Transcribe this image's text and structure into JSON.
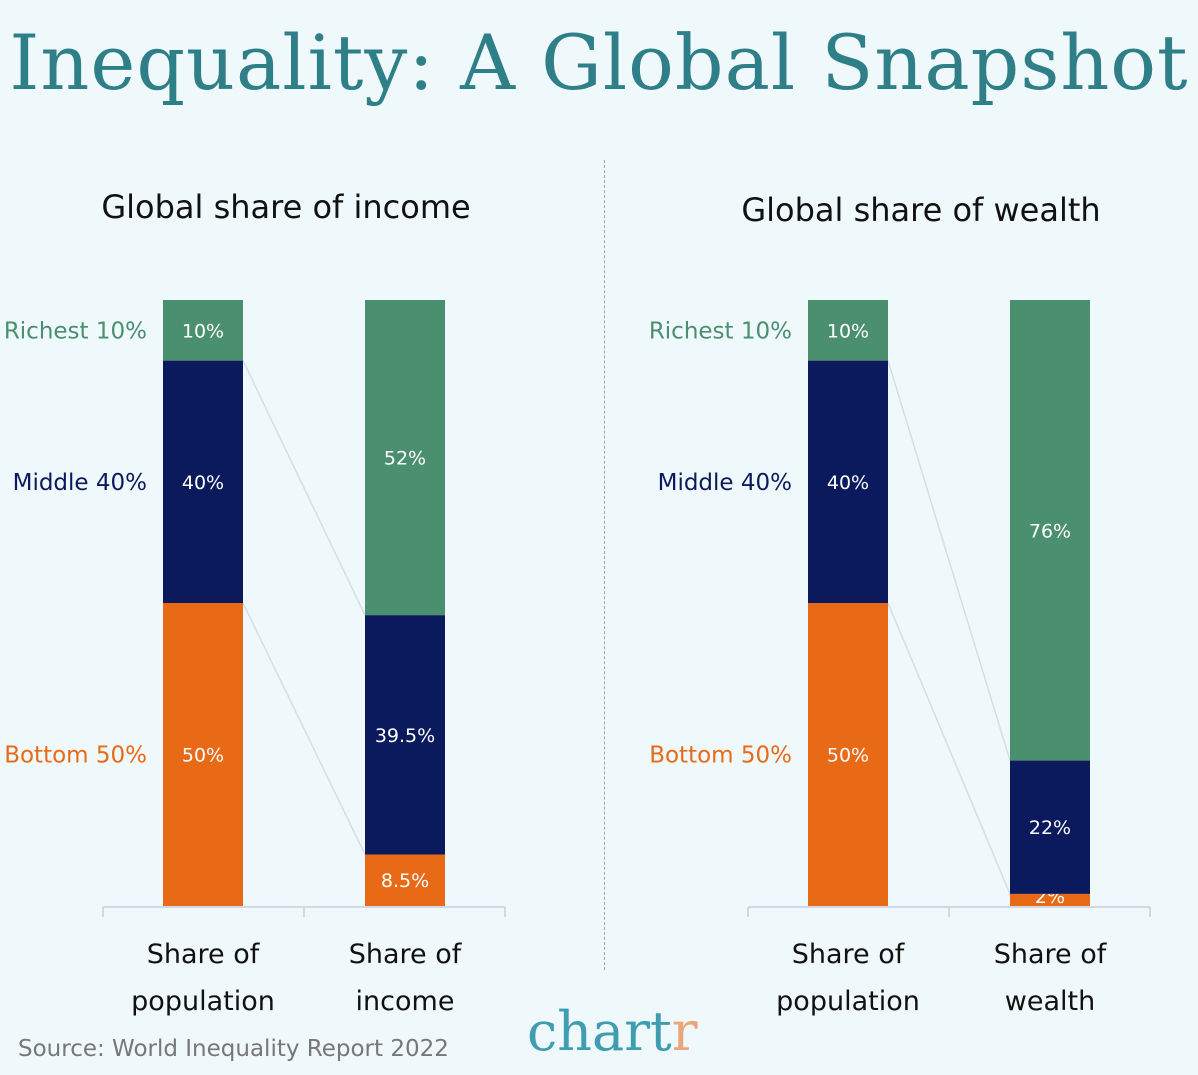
{
  "title": "Inequality: A Global Snapshot",
  "source": "Source: World Inequality Report 2022",
  "logo": {
    "main": "chart",
    "accent": "r"
  },
  "colors": {
    "richest": "#4a8f6e",
    "middle": "#0b1a5c",
    "bottom": "#e86a16",
    "title": "#2f7f88"
  },
  "chart_data": [
    {
      "type": "bar",
      "stacked": true,
      "title": "Global share of income",
      "categories": [
        "Share of population",
        "Share of income"
      ],
      "category_lines": [
        [
          "Share of",
          "population"
        ],
        [
          "Share of",
          "income"
        ]
      ],
      "groups": [
        "Richest 10%",
        "Middle 40%",
        "Bottom 50%"
      ],
      "series": [
        {
          "name": "Bottom 50%",
          "values": [
            50,
            8.5
          ],
          "labels": [
            "50%",
            "8.5%"
          ]
        },
        {
          "name": "Middle 40%",
          "values": [
            40,
            39.5
          ],
          "labels": [
            "40%",
            "39.5%"
          ]
        },
        {
          "name": "Richest 10%",
          "values": [
            10,
            52
          ],
          "labels": [
            "10%",
            "52%"
          ]
        }
      ],
      "ylim": [
        0,
        100
      ]
    },
    {
      "type": "bar",
      "stacked": true,
      "title": "Global share of wealth",
      "categories": [
        "Share of population",
        "Share of wealth"
      ],
      "category_lines": [
        [
          "Share of",
          "population"
        ],
        [
          "Share of",
          "wealth"
        ]
      ],
      "groups": [
        "Richest 10%",
        "Middle 40%",
        "Bottom 50%"
      ],
      "series": [
        {
          "name": "Bottom 50%",
          "values": [
            50,
            2
          ],
          "labels": [
            "50%",
            "2%"
          ]
        },
        {
          "name": "Middle 40%",
          "values": [
            40,
            22
          ],
          "labels": [
            "40%",
            "22%"
          ]
        },
        {
          "name": "Richest 10%",
          "values": [
            10,
            76
          ],
          "labels": [
            "10%",
            "76%"
          ]
        }
      ],
      "ylim": [
        0,
        100
      ]
    }
  ]
}
